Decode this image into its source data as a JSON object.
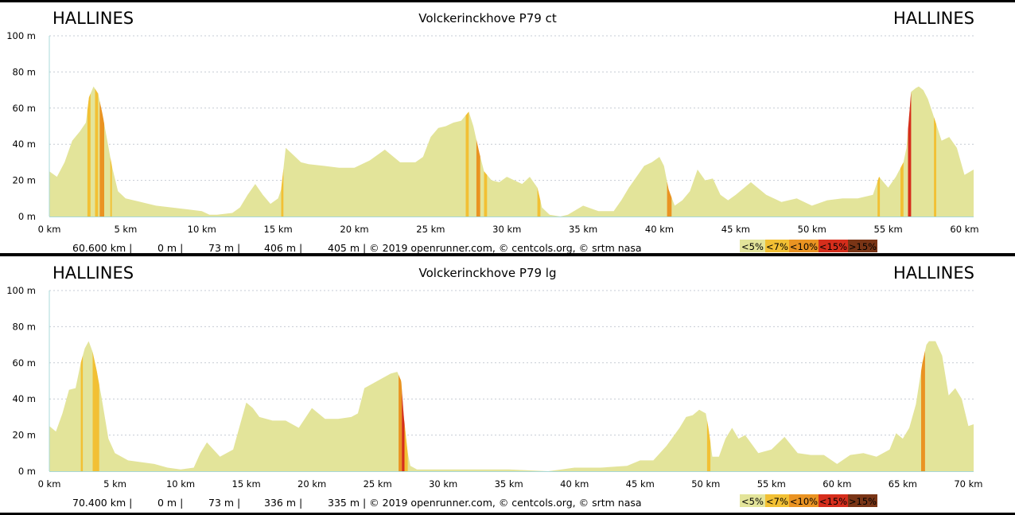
{
  "colors": {
    "lt5": "#e3e49a",
    "lt7": "#f2c034",
    "lt10": "#ea9322",
    "lt15": "#d62e1c",
    "gt15": "#7a3516",
    "grid": "#c6cbd4",
    "axis": "#a8d8d8"
  },
  "legend": [
    "<5%",
    "<7%",
    "<10%",
    "<15%",
    ">15%"
  ],
  "chart_data": [
    {
      "type": "area",
      "title": "Volckerinckhove P79 ct",
      "start_label": "HALLINES",
      "end_label": "HALLINES",
      "y_ticks": [
        "0 m",
        "20 m",
        "40 m",
        "60 m",
        "80 m",
        "100 m"
      ],
      "x_ticks": [
        "0 km",
        "5 km",
        "10 km",
        "15 km",
        "20 km",
        "25 km",
        "30 km",
        "35 km",
        "40 km",
        "45 km",
        "50 km",
        "55 km",
        "60 km"
      ],
      "xlim": [
        0,
        60.6
      ],
      "ylim": [
        0,
        100
      ],
      "stats": [
        "60.600 km |",
        "0 m |",
        "73 m |",
        "406 m |",
        "405 m | © 2019 openrunner.com, © centcols.org, © srtm nasa"
      ],
      "elevation": [
        [
          0,
          25
        ],
        [
          0.5,
          22
        ],
        [
          1,
          30
        ],
        [
          1.5,
          42
        ],
        [
          2,
          47
        ],
        [
          2.4,
          52
        ],
        [
          2.6,
          66
        ],
        [
          2.9,
          72
        ],
        [
          3.2,
          68
        ],
        [
          3.5,
          56
        ],
        [
          3.8,
          42
        ],
        [
          4.1,
          28
        ],
        [
          4.5,
          14
        ],
        [
          5,
          10
        ],
        [
          6,
          8
        ],
        [
          7,
          6
        ],
        [
          8,
          5
        ],
        [
          9,
          4
        ],
        [
          10,
          3
        ],
        [
          10.5,
          1
        ],
        [
          11,
          1
        ],
        [
          12,
          2
        ],
        [
          12.5,
          5
        ],
        [
          13,
          12
        ],
        [
          13.5,
          18
        ],
        [
          14,
          12
        ],
        [
          14.5,
          7
        ],
        [
          15,
          10
        ],
        [
          15.2,
          15
        ],
        [
          15.5,
          38
        ],
        [
          16,
          34
        ],
        [
          16.5,
          30
        ],
        [
          17,
          29
        ],
        [
          18,
          28
        ],
        [
          19,
          27
        ],
        [
          20,
          27
        ],
        [
          21,
          31
        ],
        [
          22,
          37
        ],
        [
          23,
          30
        ],
        [
          24,
          30
        ],
        [
          24.5,
          33
        ],
        [
          25,
          44
        ],
        [
          25.5,
          49
        ],
        [
          26,
          50
        ],
        [
          26.5,
          52
        ],
        [
          27,
          53
        ],
        [
          27.5,
          58
        ],
        [
          27.8,
          50
        ],
        [
          28.2,
          35
        ],
        [
          28.5,
          25
        ],
        [
          29,
          20
        ],
        [
          29.5,
          19
        ],
        [
          30,
          22
        ],
        [
          30.5,
          20
        ],
        [
          31,
          18
        ],
        [
          31.5,
          22
        ],
        [
          32,
          16
        ],
        [
          32.3,
          5
        ],
        [
          32.8,
          1
        ],
        [
          33.5,
          0
        ],
        [
          34,
          1
        ],
        [
          35,
          6
        ],
        [
          36,
          3
        ],
        [
          37,
          3
        ],
        [
          37.5,
          9
        ],
        [
          38,
          16
        ],
        [
          38.5,
          22
        ],
        [
          39,
          28
        ],
        [
          39.5,
          30
        ],
        [
          40,
          33
        ],
        [
          40.3,
          28
        ],
        [
          40.6,
          15
        ],
        [
          41,
          6
        ],
        [
          41.5,
          9
        ],
        [
          42,
          14
        ],
        [
          42.5,
          26
        ],
        [
          43,
          20
        ],
        [
          43.5,
          21
        ],
        [
          44,
          12
        ],
        [
          44.5,
          9
        ],
        [
          45,
          12
        ],
        [
          46,
          19
        ],
        [
          47,
          12
        ],
        [
          48,
          8
        ],
        [
          49,
          10
        ],
        [
          50,
          6
        ],
        [
          51,
          9
        ],
        [
          52,
          10
        ],
        [
          53,
          10
        ],
        [
          54,
          12
        ],
        [
          54.4,
          22
        ],
        [
          55,
          16
        ],
        [
          55.5,
          22
        ],
        [
          56,
          30
        ],
        [
          56.2,
          38
        ],
        [
          56.5,
          69
        ],
        [
          56.8,
          71
        ],
        [
          57,
          72
        ],
        [
          57.3,
          70
        ],
        [
          57.6,
          65
        ],
        [
          58,
          55
        ],
        [
          58.5,
          42
        ],
        [
          59,
          44
        ],
        [
          59.5,
          38
        ],
        [
          60,
          23
        ],
        [
          60.6,
          26
        ]
      ],
      "steep": [
        {
          "x0": 2.5,
          "x1": 2.7,
          "cls": "lt7"
        },
        {
          "x0": 3.3,
          "x1": 3.6,
          "cls": "lt10"
        },
        {
          "x0": 3.0,
          "x1": 3.2,
          "cls": "lt7"
        },
        {
          "x0": 4.0,
          "x1": 4.1,
          "cls": "lt7"
        },
        {
          "x0": 15.2,
          "x1": 15.35,
          "cls": "lt7"
        },
        {
          "x0": 27.3,
          "x1": 27.5,
          "cls": "lt7"
        },
        {
          "x0": 28.0,
          "x1": 28.25,
          "cls": "lt10"
        },
        {
          "x0": 28.5,
          "x1": 28.7,
          "cls": "lt7"
        },
        {
          "x0": 32.0,
          "x1": 32.2,
          "cls": "lt7"
        },
        {
          "x0": 40.5,
          "x1": 40.8,
          "cls": "lt10"
        },
        {
          "x0": 54.3,
          "x1": 54.45,
          "cls": "lt7"
        },
        {
          "x0": 55.8,
          "x1": 56.0,
          "cls": "lt7"
        },
        {
          "x0": 56.3,
          "x1": 56.5,
          "cls": "lt15"
        },
        {
          "x0": 58.0,
          "x1": 58.15,
          "cls": "lt7"
        }
      ]
    },
    {
      "type": "area",
      "title": "Volckerinckhove P79 lg",
      "start_label": "HALLINES",
      "end_label": "HALLINES",
      "y_ticks": [
        "0 m",
        "20 m",
        "40 m",
        "60 m",
        "80 m",
        "100 m"
      ],
      "x_ticks": [
        "0 km",
        "5 km",
        "10 km",
        "15 km",
        "20 km",
        "25 km",
        "30 km",
        "35 km",
        "40 km",
        "45 km",
        "50 km",
        "55 km",
        "60 km",
        "65 km",
        "70 km"
      ],
      "xlim": [
        0,
        70.4
      ],
      "ylim": [
        0,
        100
      ],
      "stats": [
        "70.400 km |",
        "0 m |",
        "73 m |",
        "336 m |",
        "335 m | © 2019 openrunner.com, © centcols.org, © srtm nasa"
      ],
      "elevation": [
        [
          0,
          25
        ],
        [
          0.5,
          22
        ],
        [
          1,
          32
        ],
        [
          1.5,
          45
        ],
        [
          2,
          46
        ],
        [
          2.4,
          60
        ],
        [
          2.7,
          68
        ],
        [
          3,
          72
        ],
        [
          3.3,
          66
        ],
        [
          3.6,
          56
        ],
        [
          4,
          40
        ],
        [
          4.5,
          18
        ],
        [
          5,
          10
        ],
        [
          6,
          6
        ],
        [
          7,
          5
        ],
        [
          8,
          4
        ],
        [
          9,
          2
        ],
        [
          10,
          1
        ],
        [
          11,
          2
        ],
        [
          11.5,
          10
        ],
        [
          12,
          16
        ],
        [
          12.5,
          12
        ],
        [
          13,
          8
        ],
        [
          14,
          12
        ],
        [
          14.5,
          25
        ],
        [
          15,
          38
        ],
        [
          15.5,
          35
        ],
        [
          16,
          30
        ],
        [
          17,
          28
        ],
        [
          18,
          28
        ],
        [
          19,
          24
        ],
        [
          20,
          35
        ],
        [
          21,
          29
        ],
        [
          22,
          29
        ],
        [
          23,
          30
        ],
        [
          23.5,
          32
        ],
        [
          24,
          46
        ],
        [
          25,
          50
        ],
        [
          26,
          54
        ],
        [
          26.5,
          55
        ],
        [
          26.8,
          50
        ],
        [
          27,
          30
        ],
        [
          27.3,
          10
        ],
        [
          27.5,
          3
        ],
        [
          28,
          1
        ],
        [
          30,
          1
        ],
        [
          32,
          1
        ],
        [
          35,
          1
        ],
        [
          38,
          0
        ],
        [
          40,
          2
        ],
        [
          42,
          2
        ],
        [
          44,
          3
        ],
        [
          45,
          6
        ],
        [
          46,
          6
        ],
        [
          47,
          14
        ],
        [
          48,
          24
        ],
        [
          48.5,
          30
        ],
        [
          49,
          31
        ],
        [
          49.5,
          34
        ],
        [
          50,
          32
        ],
        [
          50.2,
          24
        ],
        [
          50.5,
          8
        ],
        [
          51,
          8
        ],
        [
          51.5,
          18
        ],
        [
          52,
          24
        ],
        [
          52.5,
          18
        ],
        [
          53,
          20
        ],
        [
          54,
          10
        ],
        [
          55,
          12
        ],
        [
          56,
          19
        ],
        [
          57,
          10
        ],
        [
          58,
          9
        ],
        [
          59,
          9
        ],
        [
          60,
          4
        ],
        [
          61,
          9
        ],
        [
          62,
          10
        ],
        [
          63,
          8
        ],
        [
          64,
          12
        ],
        [
          64.5,
          21
        ],
        [
          65,
          18
        ],
        [
          65.5,
          24
        ],
        [
          66,
          37
        ],
        [
          66.5,
          60
        ],
        [
          66.8,
          70
        ],
        [
          67,
          72
        ],
        [
          67.5,
          72
        ],
        [
          68,
          64
        ],
        [
          68.5,
          42
        ],
        [
          69,
          46
        ],
        [
          69.5,
          40
        ],
        [
          70,
          25
        ],
        [
          70.4,
          26
        ]
      ],
      "steep": [
        {
          "x0": 2.4,
          "x1": 2.55,
          "cls": "lt7"
        },
        {
          "x0": 3.3,
          "x1": 3.8,
          "cls": "lt7"
        },
        {
          "x0": 26.6,
          "x1": 26.85,
          "cls": "lt10"
        },
        {
          "x0": 26.85,
          "x1": 27.05,
          "cls": "lt15"
        },
        {
          "x0": 27.05,
          "x1": 27.3,
          "cls": "lt7"
        },
        {
          "x0": 50.1,
          "x1": 50.35,
          "cls": "lt7"
        },
        {
          "x0": 66.4,
          "x1": 66.7,
          "cls": "lt10"
        }
      ]
    }
  ]
}
